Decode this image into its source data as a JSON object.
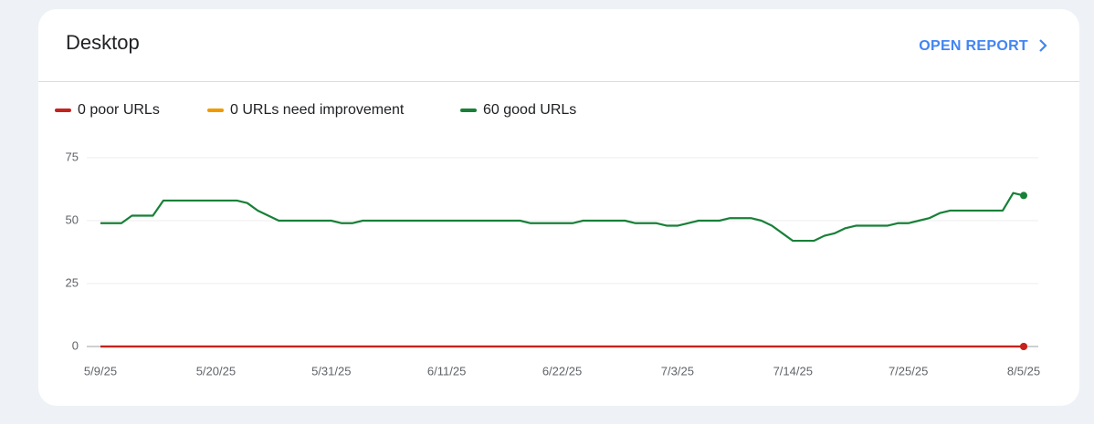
{
  "card": {
    "action": "OPEN REPORT"
  },
  "chart_data": {
    "type": "line",
    "title": "Desktop",
    "categories": [
      "5/9/25",
      null,
      null,
      null,
      null,
      null,
      null,
      null,
      null,
      null,
      null,
      "5/20/25",
      null,
      null,
      null,
      null,
      null,
      null,
      null,
      null,
      null,
      null,
      "5/31/25",
      null,
      null,
      null,
      null,
      null,
      null,
      null,
      null,
      null,
      null,
      "6/11/25",
      null,
      null,
      null,
      null,
      null,
      null,
      null,
      null,
      null,
      null,
      "6/22/25",
      null,
      null,
      null,
      null,
      null,
      null,
      null,
      null,
      null,
      null,
      "7/3/25",
      null,
      null,
      null,
      null,
      null,
      null,
      null,
      null,
      null,
      null,
      "7/14/25",
      null,
      null,
      null,
      null,
      null,
      null,
      null,
      null,
      null,
      null,
      "7/25/25",
      null,
      null,
      null,
      null,
      null,
      null,
      null,
      null,
      null,
      null,
      "8/5/25"
    ],
    "series": [
      {
        "name": "0 poor URLs",
        "color": "#c5221f",
        "values": [
          0,
          0,
          0,
          0,
          0,
          0,
          0,
          0,
          0,
          0,
          0,
          0,
          0,
          0,
          0,
          0,
          0,
          0,
          0,
          0,
          0,
          0,
          0,
          0,
          0,
          0,
          0,
          0,
          0,
          0,
          0,
          0,
          0,
          0,
          0,
          0,
          0,
          0,
          0,
          0,
          0,
          0,
          0,
          0,
          0,
          0,
          0,
          0,
          0,
          0,
          0,
          0,
          0,
          0,
          0,
          0,
          0,
          0,
          0,
          0,
          0,
          0,
          0,
          0,
          0,
          0,
          0,
          0,
          0,
          0,
          0,
          0,
          0,
          0,
          0,
          0,
          0,
          0,
          0,
          0,
          0,
          0,
          0,
          0,
          0,
          0,
          0,
          0,
          0
        ]
      },
      {
        "name": "0 URLs need improvement",
        "color": "#f29900",
        "values": [
          0,
          0,
          0,
          0,
          0,
          0,
          0,
          0,
          0,
          0,
          0,
          0,
          0,
          0,
          0,
          0,
          0,
          0,
          0,
          0,
          0,
          0,
          0,
          0,
          0,
          0,
          0,
          0,
          0,
          0,
          0,
          0,
          0,
          0,
          0,
          0,
          0,
          0,
          0,
          0,
          0,
          0,
          0,
          0,
          0,
          0,
          0,
          0,
          0,
          0,
          0,
          0,
          0,
          0,
          0,
          0,
          0,
          0,
          0,
          0,
          0,
          0,
          0,
          0,
          0,
          0,
          0,
          0,
          0,
          0,
          0,
          0,
          0,
          0,
          0,
          0,
          0,
          0,
          0,
          0,
          0,
          0,
          0,
          0,
          0,
          0,
          0,
          0,
          0
        ]
      },
      {
        "name": "60 good URLs",
        "color": "#188038",
        "values": [
          49,
          49,
          49,
          52,
          52,
          52,
          58,
          58,
          58,
          58,
          58,
          58,
          58,
          58,
          57,
          54,
          52,
          50,
          50,
          50,
          50,
          50,
          50,
          49,
          49,
          50,
          50,
          50,
          50,
          50,
          50,
          50,
          50,
          50,
          50,
          50,
          50,
          50,
          50,
          50,
          50,
          49,
          49,
          49,
          49,
          49,
          50,
          50,
          50,
          50,
          50,
          49,
          49,
          49,
          48,
          48,
          49,
          50,
          50,
          50,
          51,
          51,
          51,
          50,
          48,
          45,
          42,
          42,
          42,
          44,
          45,
          47,
          48,
          48,
          48,
          48,
          49,
          49,
          50,
          51,
          53,
          54,
          54,
          54,
          54,
          54,
          54,
          61,
          60
        ]
      }
    ],
    "ylim": [
      0,
      75
    ],
    "yticks": [
      0,
      25,
      50,
      75
    ],
    "grid": true
  }
}
